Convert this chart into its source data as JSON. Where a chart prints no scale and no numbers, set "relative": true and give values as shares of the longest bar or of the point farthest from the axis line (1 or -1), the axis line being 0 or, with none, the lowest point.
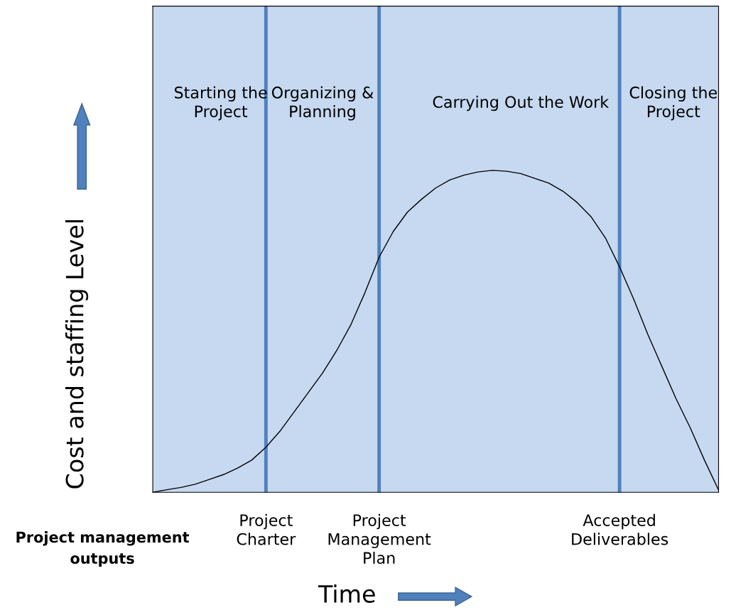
{
  "chart_data": {
    "type": "line",
    "relative": true,
    "tick_labels": "x",
    "ylabel": "Cost and staffing Level",
    "xlabel": "Time",
    "categories": [
      null,
      null,
      null,
      null,
      null,
      null,
      null,
      null,
      "Project\nCharter",
      null,
      null,
      null,
      null,
      null,
      null,
      null,
      "Project\nManagement\nPlan",
      null,
      null,
      null,
      null,
      null,
      null,
      null,
      null,
      null,
      null,
      null,
      null,
      null,
      null,
      null,
      null,
      "Accepted\nDeliverables",
      null,
      null,
      null,
      null,
      null,
      null,
      null
    ],
    "series": [
      {
        "color": "#000000",
        "values": [
          0,
          0.008,
          0.015,
          0.025,
          0.04,
          0.055,
          0.075,
          0.1,
          0.14,
          0.19,
          0.25,
          0.31,
          0.37,
          0.44,
          0.52,
          0.62,
          0.73,
          0.81,
          0.87,
          0.91,
          0.945,
          0.97,
          0.985,
          0.995,
          1.0,
          0.997,
          0.99,
          0.975,
          0.96,
          0.935,
          0.9,
          0.855,
          0.79,
          0.7,
          0.6,
          0.49,
          0.39,
          0.29,
          0.2,
          0.1,
          0.007
        ]
      }
    ],
    "ref_lines": [
      {
        "axis": "x",
        "value": "Project\nCharter",
        "color": "#4f81bd"
      },
      {
        "axis": "x",
        "value": "Project\nManagement\nPlan",
        "color": "#4f81bd"
      },
      {
        "axis": "x",
        "value": "Accepted\nDeliverables",
        "color": "#4f81bd"
      }
    ],
    "annotations": [
      "Starting the\nProject",
      "Organizing &\nPlanning",
      "Carrying Out the Work",
      "Closing the\nProject",
      "Project management\noutputs"
    ]
  }
}
